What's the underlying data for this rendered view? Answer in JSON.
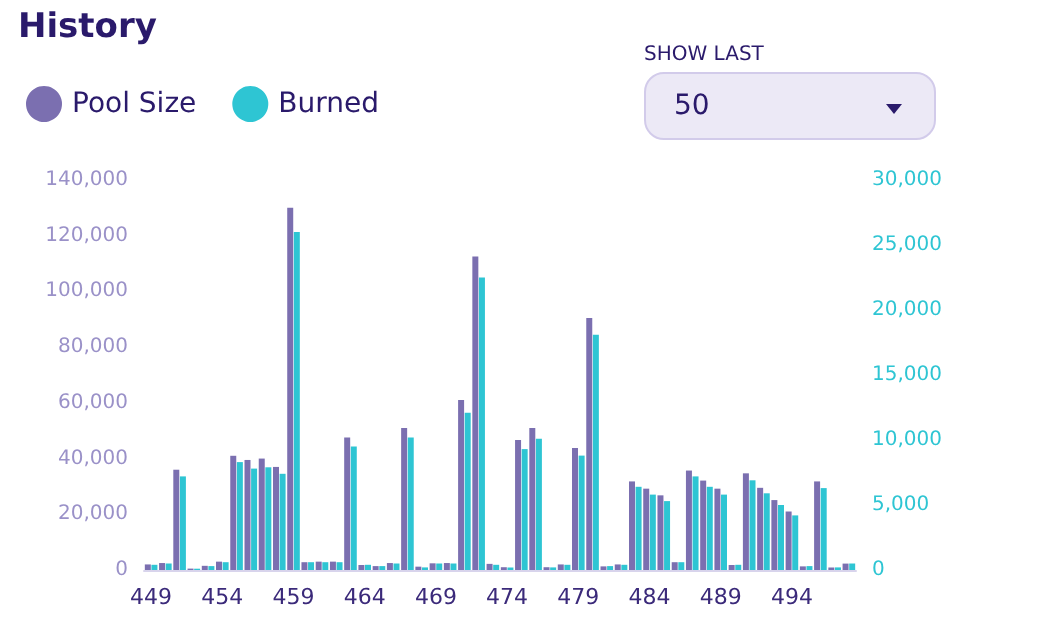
{
  "chart_data": {
    "type": "bar",
    "title": "History",
    "categories": [
      "449",
      null,
      null,
      null,
      null,
      "454",
      null,
      null,
      null,
      null,
      "459",
      null,
      null,
      null,
      null,
      "464",
      null,
      null,
      null,
      null,
      "469",
      null,
      null,
      null,
      null,
      "474",
      null,
      null,
      null,
      null,
      "479",
      null,
      null,
      null,
      null,
      "484",
      null,
      null,
      null,
      null,
      "489",
      null,
      null,
      null,
      null,
      "494",
      null,
      null,
      null,
      null
    ],
    "series": [
      {
        "name": "Pool Size",
        "color": "#7b6fb0",
        "values": [
          2000,
          2500,
          36000,
          500,
          1500,
          3000,
          41000,
          39500,
          40000,
          37000,
          130000,
          2800,
          3000,
          3000,
          47600,
          1800,
          1400,
          2500,
          51000,
          1200,
          2400,
          2500,
          61000,
          112500,
          2200,
          1000,
          46700,
          51000,
          1000,
          2000,
          43800,
          90500,
          1300,
          2000,
          31800,
          29200,
          26800,
          2800,
          35700,
          32100,
          29200,
          1800,
          34700,
          29500,
          25100,
          21000,
          1300,
          31800,
          900,
          2300
        ]
      },
      {
        "name": "Burned",
        "color": "#2ec5d3",
        "axis": "y2",
        "values": [
          400,
          500,
          7200,
          100,
          300,
          600,
          8300,
          7800,
          7900,
          7400,
          26000,
          600,
          600,
          600,
          9500,
          400,
          300,
          500,
          10200,
          200,
          500,
          500,
          12100,
          22500,
          400,
          200,
          9300,
          10100,
          200,
          400,
          8800,
          18100,
          300,
          400,
          6400,
          5800,
          5300,
          600,
          7200,
          6400,
          5800,
          400,
          6900,
          5900,
          5000,
          4200,
          300,
          6300,
          200,
          500
        ]
      }
    ],
    "ylim": [
      0,
      140000
    ],
    "yticks": [
      0,
      {
        "value": 20000,
        "label": "20,000"
      },
      {
        "value": 40000,
        "label": "40,000"
      },
      {
        "value": 60000,
        "label": "60,000"
      },
      {
        "value": 80000,
        "label": "80,000"
      },
      {
        "value": 100000,
        "label": "100,000"
      },
      {
        "value": 120000,
        "label": "120,000"
      },
      {
        "value": 140000,
        "label": "140,000"
      }
    ],
    "y2lim": [
      0,
      30000
    ],
    "y2ticks": [
      0,
      {
        "value": 5000,
        "label": "5,000"
      },
      {
        "value": 10000,
        "label": "10,000"
      },
      {
        "value": 15000,
        "label": "15,000"
      },
      {
        "value": 20000,
        "label": "20,000"
      },
      {
        "value": 25000,
        "label": "25,000"
      },
      {
        "value": 30000,
        "label": "30,000"
      }
    ],
    "grid": false,
    "legend": "top left",
    "annotations": [
      "SHOW LAST",
      "50"
    ]
  }
}
